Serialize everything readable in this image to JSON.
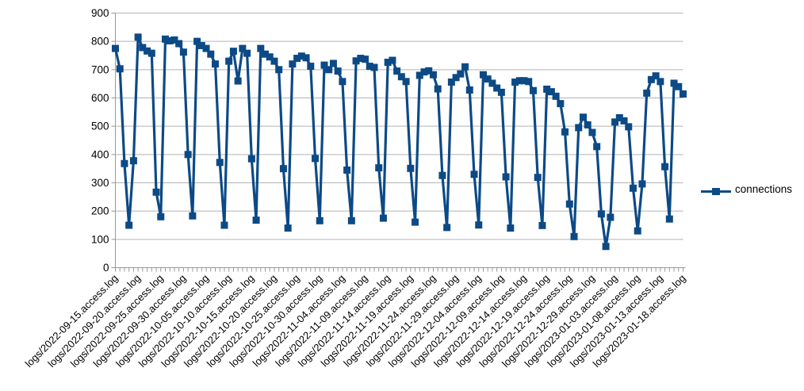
{
  "chart_data": {
    "type": "line",
    "title": "",
    "xlabel": "",
    "ylabel": "",
    "ylim": [
      0,
      900
    ],
    "y_tick_step": 100,
    "y_tick_labels": [
      "0",
      "100",
      "200",
      "300",
      "400",
      "500",
      "600",
      "700",
      "800",
      "900"
    ],
    "grid": "horizontal",
    "marker": "square",
    "legend": {
      "label": "connections",
      "position": "right-middle"
    },
    "colors": {
      "series": "#0c4a86",
      "gridline": "#b3b3b3",
      "axis": "#999999",
      "text": "#000000"
    },
    "x_label_every": 5,
    "x_tick_labels": [
      "logs/2022-09-15.access.log",
      "logs/2022-09-20.access.log",
      "logs/2022-09-25.access.log",
      "logs/2022-09-30.access.log",
      "logs/2022-10-05.access.log",
      "logs/2022-10-10.access.log",
      "logs/2022-10-15.access.log",
      "logs/2022-10-20.access.log",
      "logs/2022-10-25.access.log",
      "logs/2022-10-30.access.log",
      "logs/2022-11-04.access.log",
      "logs/2022-11-09.access.log",
      "logs/2022-11-14.access.log",
      "logs/2022-11-19.access.log",
      "logs/2022-11-24.access.log",
      "logs/2022-11-29.access.log",
      "logs/2022-12-04.access.log",
      "logs/2022-12-09.access.log",
      "logs/2022-12-14.access.log",
      "logs/2022-12-19.access.log",
      "logs/2022-12-24.access.log",
      "logs/2022-12-29.access.log",
      "logs/2023-01-03.access.log",
      "logs/2023-01-08.access.log",
      "logs/2023-01-13.access.log",
      "logs/2023-01-18.access.log"
    ],
    "series": [
      {
        "name": "connections",
        "values": [
          775,
          703,
          368,
          150,
          378,
          815,
          778,
          766,
          758,
          267,
          180,
          808,
          802,
          805,
          792,
          762,
          400,
          183,
          800,
          785,
          775,
          755,
          720,
          372,
          150,
          730,
          765,
          660,
          775,
          758,
          385,
          168,
          775,
          755,
          745,
          730,
          700,
          350,
          140,
          720,
          740,
          748,
          742,
          712,
          386,
          166,
          716,
          700,
          722,
          695,
          658,
          345,
          166,
          731,
          740,
          737,
          712,
          708,
          353,
          175,
          726,
          733,
          695,
          675,
          658,
          351,
          161,
          680,
          692,
          696,
          682,
          632,
          326,
          142,
          656,
          672,
          685,
          710,
          628,
          330,
          151,
          682,
          667,
          652,
          635,
          620,
          321,
          140,
          656,
          661,
          661,
          658,
          626,
          319,
          149,
          631,
          622,
          606,
          580,
          480,
          225,
          110,
          495,
          532,
          505,
          478,
          428,
          190,
          75,
          178,
          515,
          530,
          519,
          498,
          281,
          130,
          296,
          617,
          665,
          678,
          658,
          357,
          172,
          652,
          640,
          614
        ]
      }
    ]
  }
}
